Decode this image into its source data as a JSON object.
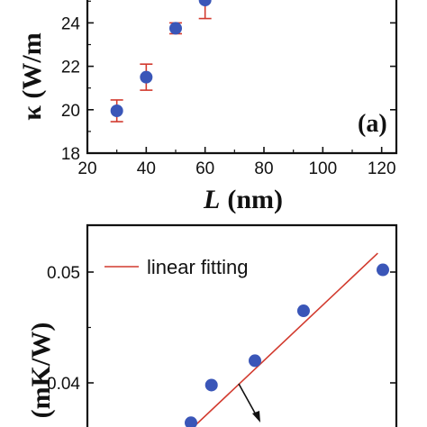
{
  "chart_data": [
    {
      "type": "scatter",
      "panel_label": "(a)",
      "ylabel": "κ (W/m",
      "xlabel_symbol": "L",
      "xlabel_unit": "(nm)",
      "xlim": [
        20,
        125
      ],
      "ylim": [
        18,
        27
      ],
      "xticks": [
        20,
        40,
        60,
        80,
        100,
        120
      ],
      "xtick_labels": [
        "20",
        "40",
        "60",
        "80",
        "100",
        "120"
      ],
      "yticks": [
        18,
        20,
        22,
        24
      ],
      "ytick_labels": [
        "18",
        "20",
        "22",
        "24"
      ],
      "points": [
        {
          "x": 30,
          "y": 19.95,
          "err": 0.5
        },
        {
          "x": 40,
          "y": 21.5,
          "err": 0.6
        },
        {
          "x": 50,
          "y": 23.75,
          "err": 0.25
        },
        {
          "x": 60,
          "y": 25.05,
          "err": 0.85
        }
      ],
      "colors": {
        "marker": "#3a56b8",
        "errorbar": "#d23a2e",
        "axis": "#111111"
      }
    },
    {
      "type": "scatter",
      "ylabel": "(mK/W)",
      "yticks": [
        0.04,
        0.05
      ],
      "ytick_labels": [
        "0.04",
        "0.05"
      ],
      "ylim": [
        0.0355,
        0.053
      ],
      "legend": {
        "label": "linear fitting",
        "placement": "top-left"
      },
      "points": [
        {
          "x": 0.25,
          "y": 0.0364
        },
        {
          "x": 0.33,
          "y": 0.0398
        },
        {
          "x": 0.5,
          "y": 0.042
        },
        {
          "x": 0.69,
          "y": 0.0465
        },
        {
          "x": 1.0,
          "y": 0.0502
        }
      ],
      "fit_line": {
        "x0": 0.25,
        "y0": 0.0358,
        "x1": 0.98,
        "y1": 0.0517
      },
      "colors": {
        "marker": "#3a56b8",
        "fit": "#d23a2e",
        "axis": "#111111"
      }
    }
  ]
}
